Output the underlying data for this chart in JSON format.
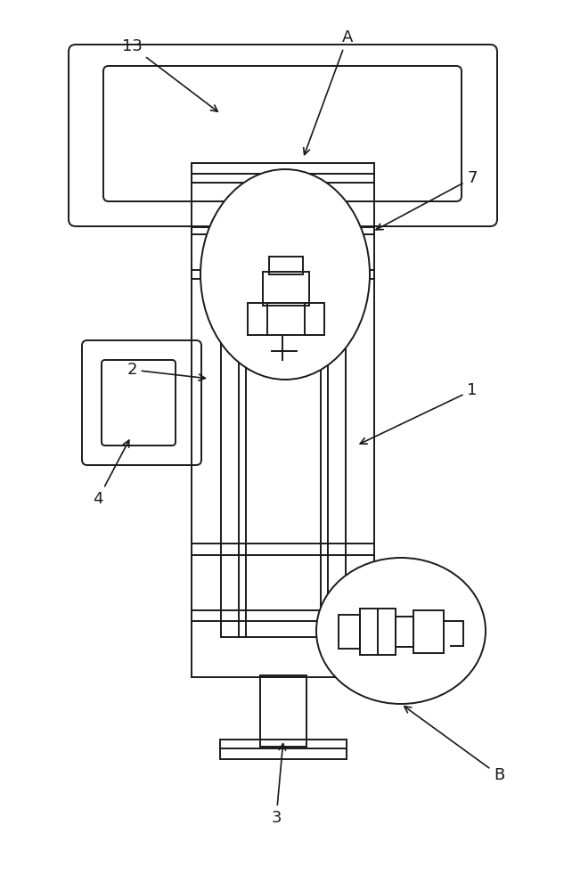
{
  "bg_color": "#ffffff",
  "line_color": "#1a1a1a",
  "lw": 1.4,
  "fig_w": 6.42,
  "fig_h": 10.0
}
